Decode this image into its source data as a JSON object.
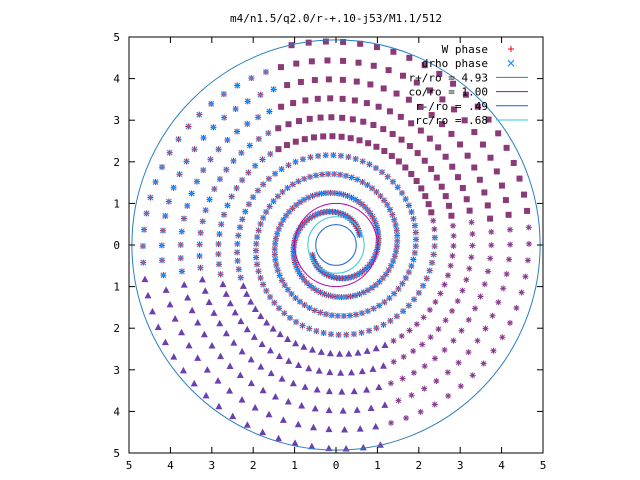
{
  "chart_data": {
    "type": "scatter",
    "title": "m4/n1.5/q2.0/r-+.10-j53/M1.1/512",
    "xlabel": "",
    "ylabel": "",
    "xlim": [
      -5,
      5
    ],
    "ylim": [
      -5,
      5
    ],
    "x_ticks": [
      "5",
      "4",
      "3",
      "2",
      "1",
      "0",
      "1",
      "2",
      "3",
      "4",
      "5"
    ],
    "y_ticks": [
      "5",
      "4",
      "3",
      "2",
      "1",
      "0",
      "1",
      "2",
      "3",
      "4",
      "5"
    ],
    "grid": false,
    "legend_position": "top-right",
    "series": [
      {
        "name": "W phase",
        "marker": "+",
        "color": "#ff0000"
      },
      {
        "name": "drho phase",
        "marker": "x",
        "color": "#1e90ff"
      }
    ],
    "circles": [
      {
        "name": "r+/ro = 4.93",
        "radius": 4.93,
        "color": "#2b7fc0"
      },
      {
        "name": "co/ro = 1.00",
        "radius": 1.0,
        "color": "#b000b0"
      },
      {
        "name": "r-/ro = .49",
        "radius": 0.49,
        "color": "#1c5fd6"
      },
      {
        "name": "rc/ro = .68",
        "radius": 0.68,
        "color": "#30c8d8"
      }
    ]
  }
}
